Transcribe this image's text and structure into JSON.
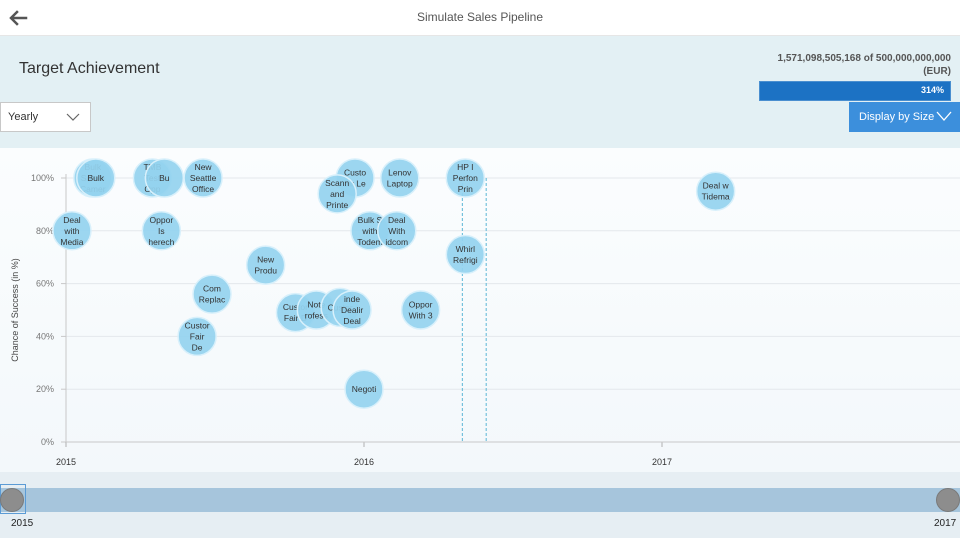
{
  "app": {
    "title": "Simulate Sales Pipeline"
  },
  "header": {
    "title": "Target Achievement",
    "target_line": "1,571,098,505,168 of 500,000,000,000",
    "currency": "(EUR)",
    "progress_label": "314%",
    "progress_value": 1.0
  },
  "controls": {
    "period_value": "Yearly",
    "display_label": "Display by Size"
  },
  "slider": {
    "start_label": "2015",
    "end_label": "2017"
  },
  "colors": {
    "bubble_fill": "#94d3ef",
    "bubble_stroke": "#d8f0fb",
    "accent": "#3c8fdc",
    "progress_fill": "#1c72c4"
  },
  "icons": {
    "back": "arrow-left-icon",
    "dropdown": "chevron-down-icon"
  },
  "chart_data": {
    "type": "scatter",
    "xlabel": "",
    "ylabel": "Chance of Success (in %)",
    "x_ticks": [
      "2015",
      "2016",
      "2017"
    ],
    "y_ticks": [
      "0%",
      "20%",
      "40%",
      "60%",
      "80%",
      "100%"
    ],
    "xlim": [
      2015.0,
      2018.0
    ],
    "ylim": [
      0,
      100
    ],
    "grid": true,
    "reference_lines": [
      2016.33,
      2016.41
    ],
    "points": [
      {
        "label": "Bulk Sale o Camer",
        "x": 2015.09,
        "y": 100
      },
      {
        "label": "Bulk",
        "x": 2015.1,
        "y": 100
      },
      {
        "label": "TMB Test Opp",
        "x": 2015.29,
        "y": 100
      },
      {
        "label": "Bu",
        "x": 2015.33,
        "y": 100
      },
      {
        "label": "New Seattle Office",
        "x": 2015.46,
        "y": 100
      },
      {
        "label": "Custo air Le",
        "x": 2015.97,
        "y": 100
      },
      {
        "label": "Lenov Laptop",
        "x": 2016.12,
        "y": 100
      },
      {
        "label": "HP I Perfon Prin",
        "x": 2016.34,
        "y": 100
      },
      {
        "label": "Deal w Tidema",
        "x": 2017.18,
        "y": 95
      },
      {
        "label": "Scann and Printe",
        "x": 2015.91,
        "y": 94
      },
      {
        "label": "Deal with Media",
        "x": 2015.02,
        "y": 80
      },
      {
        "label": "Oppor Is herech",
        "x": 2015.32,
        "y": 80
      },
      {
        "label": "Bulk S with Todem",
        "x": 2016.02,
        "y": 80
      },
      {
        "label": "Deal With idcom",
        "x": 2016.11,
        "y": 80
      },
      {
        "label": "Whirl Refrigi",
        "x": 2016.34,
        "y": 71
      },
      {
        "label": "New Produ",
        "x": 2015.67,
        "y": 67
      },
      {
        "label": "Com Replac",
        "x": 2015.49,
        "y": 56
      },
      {
        "label": "Custor Fair D",
        "x": 2015.77,
        "y": 49
      },
      {
        "label": "Note rofess",
        "x": 2015.84,
        "y": 50
      },
      {
        "label": "Custor",
        "x": 2015.92,
        "y": 51
      },
      {
        "label": "inde Dealir Deal",
        "x": 2015.96,
        "y": 50
      },
      {
        "label": "Oppor With 3",
        "x": 2016.19,
        "y": 50
      },
      {
        "label": "Custor Fair De",
        "x": 2015.44,
        "y": 40
      },
      {
        "label": "Negoti",
        "x": 2016.0,
        "y": 20
      }
    ]
  }
}
